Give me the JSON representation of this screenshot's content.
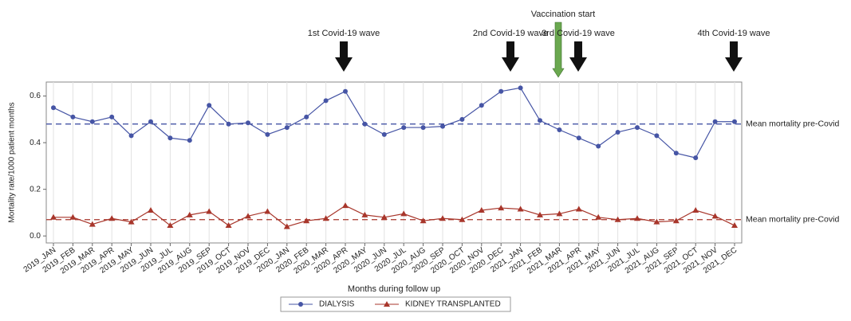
{
  "chart_data": {
    "type": "line",
    "x_label": "Months during follow up",
    "y_label": "Mortality rate/1000 patient months",
    "categories": [
      "2019_JAN",
      "2019_FEB",
      "2019_MAR",
      "2019_APR",
      "2019_MAY",
      "2019_JUN",
      "2019_JUL",
      "2019_AUG",
      "2019_SEP",
      "2019_OCT",
      "2019_NOV",
      "2019_DEC",
      "2020_JAN",
      "2020_FEB",
      "2020_MAR",
      "2020_APR",
      "2020_MAY",
      "2020_JUN",
      "2020_JUL",
      "2020_AUG",
      "2020_SEP",
      "2020_OCT",
      "2020_NOV",
      "2020_DEC",
      "2021_JAN",
      "2021_FEB",
      "2021_MAR",
      "2021_APR",
      "2021_MAY",
      "2021_JUN",
      "2021_JUL",
      "2021_AUG",
      "2021_SEP",
      "2021_OCT",
      "2021_NOV",
      "2021_DEC"
    ],
    "series": [
      {
        "name": "DIALYSIS",
        "color": "#4655a5",
        "marker": "circle",
        "values": [
          0.55,
          0.51,
          0.49,
          0.51,
          0.43,
          0.49,
          0.42,
          0.41,
          0.56,
          0.48,
          0.485,
          0.435,
          0.465,
          0.51,
          0.58,
          0.62,
          0.48,
          0.435,
          0.465,
          0.465,
          0.47,
          0.5,
          0.56,
          0.62,
          0.635,
          0.495,
          0.455,
          0.42,
          0.385,
          0.445,
          0.465,
          0.43,
          0.355,
          0.335,
          0.49,
          0.49
        ]
      },
      {
        "name": "KIDNEY TRANSPLANTED",
        "color": "#a8362b",
        "marker": "triangle",
        "values": [
          0.08,
          0.08,
          0.05,
          0.075,
          0.06,
          0.11,
          0.045,
          0.09,
          0.105,
          0.045,
          0.085,
          0.105,
          0.04,
          0.065,
          0.075,
          0.13,
          0.09,
          0.08,
          0.095,
          0.065,
          0.075,
          0.07,
          0.11,
          0.12,
          0.115,
          0.09,
          0.095,
          0.115,
          0.08,
          0.07,
          0.075,
          0.06,
          0.065,
          0.11,
          0.085,
          0.045
        ]
      }
    ],
    "reference_lines": [
      {
        "value": 0.48,
        "color": "#4655a5",
        "label": "Mean mortality pre-Covid"
      },
      {
        "value": 0.07,
        "color": "#a8362b",
        "label": "Mean mortality pre-Covid"
      }
    ],
    "annotations": [
      {
        "text": "1st Covid-19 wave",
        "color": "#111111"
      },
      {
        "text": "2nd Covid-19 wave",
        "color": "#111111"
      },
      {
        "text": "Vaccination start",
        "color": "#6aa84f"
      },
      {
        "text": "3rd Covid-19 wave",
        "color": "#111111"
      },
      {
        "text": "4th Covid-19 wave",
        "color": "#111111"
      }
    ],
    "ylim": [
      -0.03,
      0.66
    ],
    "yticks": [
      {
        "value": 0,
        "label": "0.0"
      },
      0.2,
      0.4,
      0.6
    ],
    "grid": true
  }
}
